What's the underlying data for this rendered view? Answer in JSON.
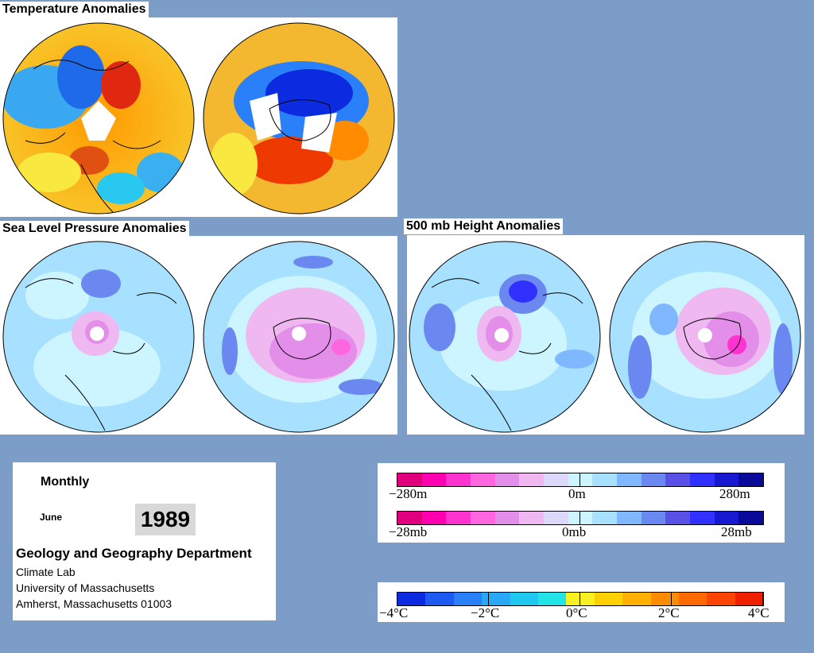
{
  "sections": {
    "temperature_title": "Temperature Anomalies",
    "slp_title": "Sea Level Pressure Anomalies",
    "height_title": "500 mb Height Anomalies"
  },
  "info": {
    "period": "Monthly",
    "month": "June",
    "year": "1989",
    "department": "Geology and Geography Department",
    "lab": "Climate Lab",
    "university": "University of Massachusetts",
    "address": "Amherst, Massachusetts 01003"
  },
  "scales": {
    "height": {
      "left": "−280m",
      "center": "0m",
      "right": "280m"
    },
    "pressure": {
      "left": "−28mb",
      "center": "0mb",
      "right": "28mb"
    },
    "temperature": {
      "labels": [
        "−4°C",
        "−2°C",
        "0°C",
        "2°C",
        "4°C"
      ]
    }
  },
  "colors": {
    "background": "#7b9dc7",
    "pink_scale": [
      "#e0007e",
      "#ff00b0",
      "#ff33d0",
      "#ff66e0",
      "#e38ee8",
      "#f0b8f0",
      "#dcd8fa",
      "#ccf5ff",
      "#a8e0ff",
      "#80b8ff",
      "#6a88f0",
      "#5a50e8",
      "#3030ff",
      "#1818d0",
      "#0a0a9a"
    ],
    "temp_scale": [
      "#0c2ae0",
      "#1d5af2",
      "#2a80f8",
      "#2aa8f8",
      "#20c8f0",
      "#22e4e8",
      "#f8f020",
      "#ffd000",
      "#ffb000",
      "#ff8c00",
      "#ff6a00",
      "#ff4400",
      "#ee2000"
    ]
  },
  "maps": {
    "temp_nh": "temperature-anomaly-northern-hemisphere",
    "temp_sh": "temperature-anomaly-southern-hemisphere",
    "slp_nh": "slp-anomaly-northern-hemisphere",
    "slp_sh": "slp-anomaly-southern-hemisphere",
    "hgt_nh": "500mb-height-anomaly-northern-hemisphere",
    "hgt_sh": "500mb-height-anomaly-southern-hemisphere"
  }
}
